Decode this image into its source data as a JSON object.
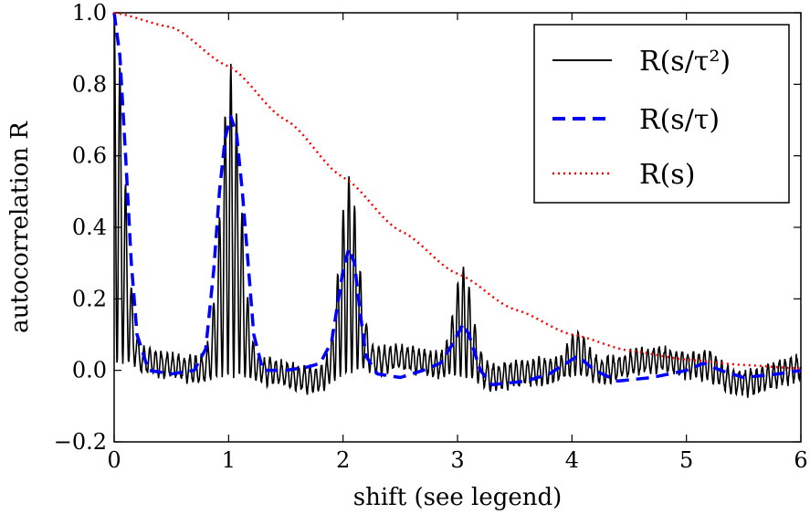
{
  "chart_data": {
    "type": "line",
    "title": "",
    "xlabel": "shift (see legend)",
    "ylabel": "autocorrelation R",
    "xlim": [
      0,
      6
    ],
    "ylim": [
      -0.2,
      1.0
    ],
    "x_ticks": [
      0,
      1,
      2,
      3,
      4,
      5,
      6
    ],
    "x_tick_labels": [
      "0",
      "1",
      "2",
      "3",
      "4",
      "5",
      "6"
    ],
    "y_ticks": [
      -0.2,
      0.0,
      0.2,
      0.4,
      0.6,
      0.8,
      1.0
    ],
    "y_tick_labels": [
      "−0.2",
      "0.0",
      "0.2",
      "0.4",
      "0.6",
      "0.8",
      "1.0"
    ],
    "grid": false,
    "legend_position": "top-right",
    "series": [
      {
        "name": "R(s/τ²)",
        "color": "#000000",
        "style": "solid",
        "peaks": [
          {
            "x": 0.0,
            "height": 1.0,
            "amplitude": 0.7
          },
          {
            "x": 1.02,
            "height": 0.83,
            "amplitude": 0.6
          },
          {
            "x": 2.05,
            "height": 0.55,
            "amplitude": 0.4
          },
          {
            "x": 3.05,
            "height": 0.3,
            "amplitude": 0.25
          },
          {
            "x": 4.05,
            "height": 0.11,
            "amplitude": 0.1
          },
          {
            "x": 5.2,
            "height": 0.05,
            "amplitude": 0.08
          }
        ]
      },
      {
        "name": "R(s/τ)",
        "color": "#0000ff",
        "style": "dashed",
        "points": [
          [
            0.0,
            1.0
          ],
          [
            0.05,
            0.88
          ],
          [
            0.1,
            0.6
          ],
          [
            0.15,
            0.3
          ],
          [
            0.2,
            0.1
          ],
          [
            0.3,
            0.0
          ],
          [
            0.5,
            -0.01
          ],
          [
            0.7,
            0.0
          ],
          [
            0.8,
            0.06
          ],
          [
            0.87,
            0.28
          ],
          [
            0.92,
            0.5
          ],
          [
            0.97,
            0.65
          ],
          [
            1.02,
            0.71
          ],
          [
            1.07,
            0.66
          ],
          [
            1.12,
            0.5
          ],
          [
            1.17,
            0.3
          ],
          [
            1.22,
            0.1
          ],
          [
            1.3,
            0.0
          ],
          [
            1.5,
            0.0
          ],
          [
            1.7,
            0.01
          ],
          [
            1.8,
            0.02
          ],
          [
            1.9,
            0.08
          ],
          [
            1.95,
            0.18
          ],
          [
            2.0,
            0.28
          ],
          [
            2.05,
            0.34
          ],
          [
            2.1,
            0.3
          ],
          [
            2.15,
            0.16
          ],
          [
            2.2,
            0.04
          ],
          [
            2.3,
            -0.01
          ],
          [
            2.5,
            -0.02
          ],
          [
            2.7,
            0.0
          ],
          [
            2.85,
            0.02
          ],
          [
            2.95,
            0.07
          ],
          [
            3.05,
            0.13
          ],
          [
            3.1,
            0.1
          ],
          [
            3.2,
            0.0
          ],
          [
            3.3,
            -0.04
          ],
          [
            3.6,
            -0.03
          ],
          [
            3.8,
            -0.01
          ],
          [
            3.95,
            0.02
          ],
          [
            4.05,
            0.04
          ],
          [
            4.2,
            0.0
          ],
          [
            4.4,
            -0.03
          ],
          [
            4.7,
            -0.02
          ],
          [
            5.0,
            0.0
          ],
          [
            5.15,
            0.02
          ],
          [
            5.3,
            0.0
          ],
          [
            5.5,
            -0.02
          ],
          [
            5.8,
            -0.01
          ],
          [
            6.0,
            0.0
          ]
        ]
      },
      {
        "name": "R(s)",
        "color": "#ff0000",
        "style": "dotted",
        "points": [
          [
            0.0,
            1.0
          ],
          [
            0.5,
            0.96
          ],
          [
            1.0,
            0.85
          ],
          [
            1.5,
            0.7
          ],
          [
            2.0,
            0.54
          ],
          [
            2.5,
            0.39
          ],
          [
            3.0,
            0.27
          ],
          [
            3.5,
            0.17
          ],
          [
            4.0,
            0.1
          ],
          [
            4.5,
            0.055
          ],
          [
            5.0,
            0.03
          ],
          [
            5.5,
            0.015
          ],
          [
            6.0,
            0.005
          ]
        ]
      }
    ]
  }
}
